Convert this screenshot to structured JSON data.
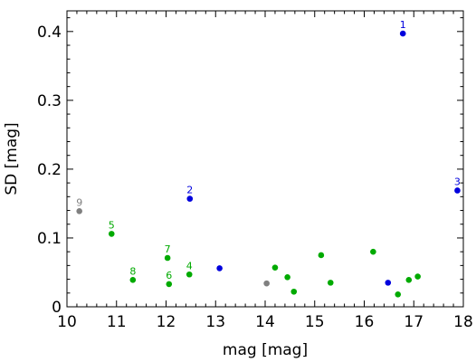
{
  "chart_data": {
    "type": "scatter",
    "title": "",
    "xlabel": "mag [mag]",
    "ylabel": "SD [mag]",
    "xlim": [
      10,
      18
    ],
    "ylim": [
      0,
      0.43
    ],
    "xticks": [
      10,
      11,
      12,
      13,
      14,
      15,
      16,
      17,
      18
    ],
    "yticks": [
      0,
      0.1,
      0.2,
      0.3,
      0.4
    ],
    "ytick_labels": [
      "0",
      "0.1",
      "0.2",
      "0.3",
      "0.4"
    ],
    "colors": {
      "blue": "#0000dd",
      "green": "#00aa00",
      "gray": "#808080"
    },
    "points": [
      {
        "x": 16.78,
        "y": 0.397,
        "color": "blue",
        "label": "1"
      },
      {
        "x": 12.48,
        "y": 0.157,
        "color": "blue",
        "label": "2"
      },
      {
        "x": 17.88,
        "y": 0.169,
        "color": "blue",
        "label": "3"
      },
      {
        "x": 13.08,
        "y": 0.056,
        "color": "blue",
        "label": ""
      },
      {
        "x": 16.48,
        "y": 0.035,
        "color": "blue",
        "label": ""
      },
      {
        "x": 10.9,
        "y": 0.106,
        "color": "green",
        "label": "5"
      },
      {
        "x": 11.33,
        "y": 0.039,
        "color": "green",
        "label": "8"
      },
      {
        "x": 12.03,
        "y": 0.071,
        "color": "green",
        "label": "7"
      },
      {
        "x": 12.06,
        "y": 0.033,
        "color": "green",
        "label": "6"
      },
      {
        "x": 12.47,
        "y": 0.047,
        "color": "green",
        "label": "4"
      },
      {
        "x": 14.2,
        "y": 0.057,
        "color": "green",
        "label": ""
      },
      {
        "x": 14.45,
        "y": 0.043,
        "color": "green",
        "label": ""
      },
      {
        "x": 14.58,
        "y": 0.022,
        "color": "green",
        "label": ""
      },
      {
        "x": 15.13,
        "y": 0.075,
        "color": "green",
        "label": ""
      },
      {
        "x": 15.32,
        "y": 0.035,
        "color": "green",
        "label": ""
      },
      {
        "x": 16.18,
        "y": 0.08,
        "color": "green",
        "label": ""
      },
      {
        "x": 16.68,
        "y": 0.018,
        "color": "green",
        "label": ""
      },
      {
        "x": 16.9,
        "y": 0.039,
        "color": "green",
        "label": ""
      },
      {
        "x": 17.08,
        "y": 0.044,
        "color": "green",
        "label": ""
      },
      {
        "x": 10.25,
        "y": 0.139,
        "color": "gray",
        "label": "9"
      },
      {
        "x": 14.03,
        "y": 0.034,
        "color": "gray",
        "label": ""
      }
    ]
  }
}
